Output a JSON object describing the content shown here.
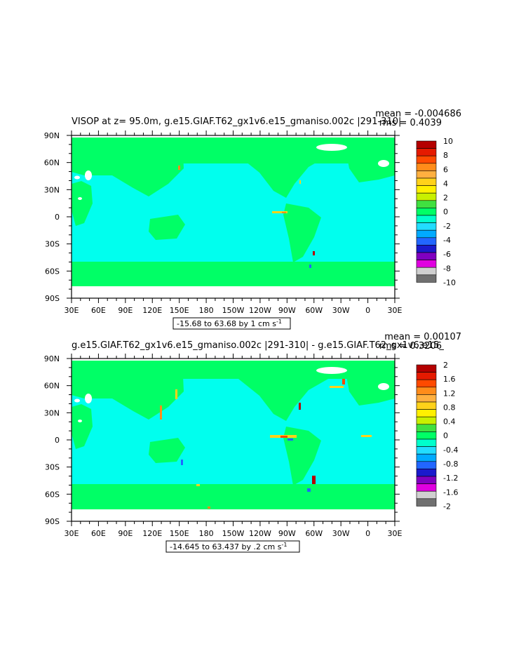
{
  "chart_data": [
    {
      "type": "heatmap",
      "title": "VISOP at z=  95.0m, g.e15.GIAF.T62_gx1v6.e15_gmaniso.002c |291-310|",
      "stats": [
        "mean = -0.004686",
        "rms = 0.4039"
      ],
      "range_label": "-15.68 to 63.68 by 1 cm s",
      "range_units_exp": "-1",
      "x_ticks": [
        "30E",
        "60E",
        "90E",
        "120E",
        "150E",
        "180",
        "150W",
        "120W",
        "90W",
        "60W",
        "30W",
        "0",
        "30E"
      ],
      "y_ticks": [
        "90N",
        "60N",
        "30N",
        "0",
        "30S",
        "60S",
        "90S"
      ],
      "colorbar_labels": [
        "10",
        "8",
        "6",
        "4",
        "2",
        "0",
        "-2",
        "-4",
        "-6",
        "-8",
        "-10"
      ],
      "colorbar_colors": [
        "#b40000",
        "#e51a00",
        "#ff4a00",
        "#ff8c1a",
        "#ffb040",
        "#ffd21a",
        "#fff000",
        "#c8f000",
        "#40e040",
        "#00ff66",
        "#00ffcc",
        "#22ddff",
        "#00aaff",
        "#2266ff",
        "#1a1acc",
        "#8000c0",
        "#e000e0",
        "#d0d0d0",
        "#707070"
      ],
      "field": {
        "background_color": "#00ff66",
        "ocean_color": "#00ffee",
        "land_color": "#00ff66"
      }
    },
    {
      "type": "heatmap",
      "title": "g.e15.GIAF.T62_gx1v6.e15_gmaniso.002c |291-310| - g.e15.GIAF.T62_gx1v6.e15_",
      "stats": [
        "mean = 0.00107",
        "rms = 0.3206"
      ],
      "range_label": "-14.645 to 63.437 by .2 cm s",
      "range_units_exp": "-1",
      "x_ticks": [
        "30E",
        "60E",
        "90E",
        "120E",
        "150E",
        "180",
        "150W",
        "120W",
        "90W",
        "60W",
        "30W",
        "0",
        "30E"
      ],
      "y_ticks": [
        "90N",
        "60N",
        "30N",
        "0",
        "30S",
        "60S",
        "90S"
      ],
      "colorbar_labels": [
        "2",
        "1.6",
        "1.2",
        "0.8",
        "0.4",
        "0",
        "-0.4",
        "-0.8",
        "-1.2",
        "-1.6",
        "-2"
      ],
      "colorbar_colors": [
        "#b40000",
        "#e51a00",
        "#ff4a00",
        "#ff8c1a",
        "#ffb040",
        "#ffd21a",
        "#fff000",
        "#c8f000",
        "#40e040",
        "#00ff66",
        "#00ffcc",
        "#22ddff",
        "#00aaff",
        "#2266ff",
        "#1a1acc",
        "#8000c0",
        "#e000e0",
        "#d0d0d0",
        "#707070"
      ],
      "field": {
        "background_color": "#00ff66",
        "ocean_color": "#00ffee",
        "land_color": "#00ff66"
      }
    }
  ]
}
